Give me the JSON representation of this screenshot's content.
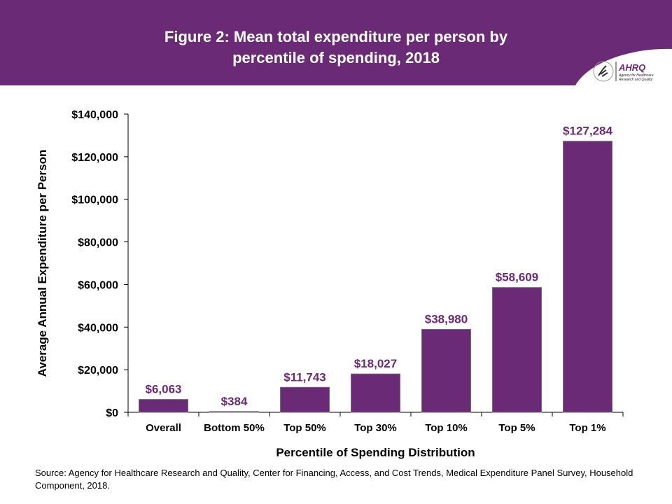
{
  "header": {
    "title_line1": "Figure 2: Mean total expenditure per person by",
    "title_line2": "percentile of spending, 2018",
    "color": "#6B2A75"
  },
  "logo": {
    "text": "AHRQ",
    "subtitle": "Agency for Healthcare Research and Quality"
  },
  "chart_data": {
    "type": "bar",
    "categories": [
      "Overall",
      "Bottom 50%",
      "Top 50%",
      "Top 30%",
      "Top 10%",
      "Top 5%",
      "Top 1%"
    ],
    "values": [
      6063,
      384,
      11743,
      18027,
      38980,
      58609,
      127284
    ],
    "data_labels": [
      "$6,063",
      "$384",
      "$11,743",
      "$18,027",
      "$38,980",
      "$58,609",
      "$127,284"
    ],
    "xlabel": "Percentile of Spending Distribution",
    "ylabel": "Average Annual Expenditure per Person",
    "ylim": [
      0,
      140000
    ],
    "yticks": [
      0,
      20000,
      40000,
      60000,
      80000,
      100000,
      120000,
      140000
    ],
    "ytick_labels": [
      "$0",
      "$20,000",
      "$40,000",
      "$60,000",
      "$80,000",
      "$100,000",
      "$120,000",
      "$140,000"
    ],
    "grid": false,
    "bar_color": "#6B2A75",
    "label_color": "#6B2A75"
  },
  "source": "Source: Agency for Healthcare Research and Quality, Center for Financing, Access, and Cost Trends, Medical Expenditure Panel Survey, Household Component, 2018."
}
